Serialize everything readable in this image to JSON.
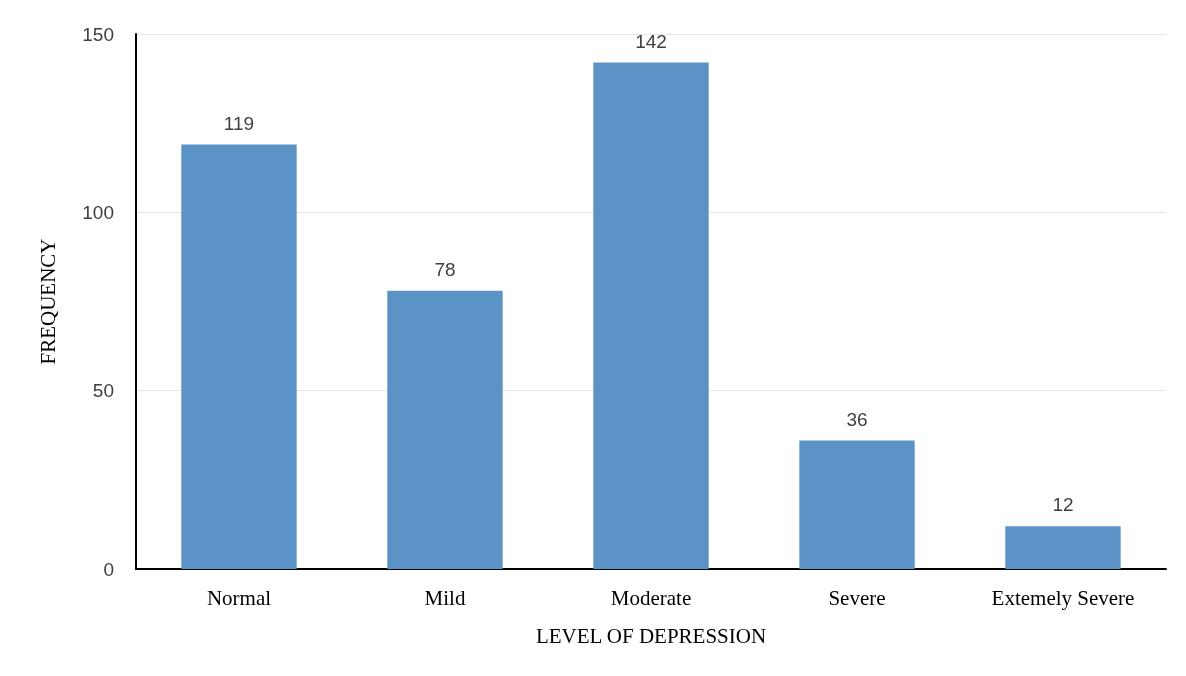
{
  "chart_data": {
    "type": "bar",
    "xlabel": "LEVEL OF DEPRESSION",
    "ylabel": "FREQUENCY",
    "categories": [
      "Normal",
      "Mild",
      "Moderate",
      "Severe",
      "Extemely Severe"
    ],
    "values": [
      119,
      78,
      142,
      36,
      12
    ],
    "color": "#5b93c7",
    "ylim": [
      0,
      150
    ],
    "yticks": [
      0,
      50,
      100,
      150
    ],
    "grid": "y",
    "data_labels": true
  }
}
